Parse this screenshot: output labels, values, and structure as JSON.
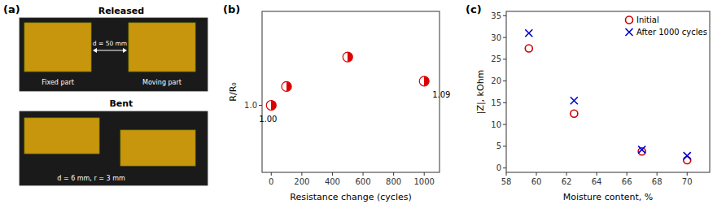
{
  "chart_data": [
    {
      "type": "diagram",
      "title": "(a)",
      "annotations": [
        "Released",
        "d = 50 mm",
        "Fixed part",
        "Moving part",
        "Bent",
        "d = 6 mm, r = 3 mm"
      ]
    },
    {
      "type": "scatter",
      "title": "(b)",
      "x": [
        0,
        100,
        500,
        1000
      ],
      "values": [
        1.0,
        1.07,
        1.18,
        1.09
      ],
      "value_labels": [
        "1.00",
        null,
        null,
        "1.09"
      ],
      "color": "#dd0000",
      "marker": "half-filled",
      "x_label": "Resistance change (cycles)",
      "y_label": "R/R₀",
      "xlim": [
        -60,
        1100
      ],
      "ylim": [
        0.75,
        1.35
      ],
      "xticks": [
        0,
        200,
        400,
        600,
        800,
        1000
      ],
      "yticks": [
        {
          "value": 1.0,
          "label": "1.0"
        }
      ]
    },
    {
      "type": "scatter",
      "title": "(c)",
      "x": [
        59.5,
        62.5,
        67.0,
        70.0
      ],
      "series": [
        {
          "name": "Initial",
          "color": "#cc0000",
          "marker": "circle-open",
          "values": [
            27.5,
            12.5,
            3.8,
            1.8
          ]
        },
        {
          "name": "After 1000 cycles",
          "color": "#0000cc",
          "marker": "x",
          "values": [
            31.0,
            15.5,
            4.2,
            2.8
          ]
        }
      ],
      "x_label": "Moisture content, %",
      "y_label": "|Z|, kOhm",
      "xlim": [
        58,
        71.5
      ],
      "ylim": [
        -1,
        36
      ],
      "xticks": [
        58,
        60,
        62,
        64,
        66,
        68,
        70
      ],
      "yticks": [
        0,
        5,
        10,
        15,
        20,
        25,
        30,
        35
      ],
      "legend": "upper-right"
    }
  ]
}
